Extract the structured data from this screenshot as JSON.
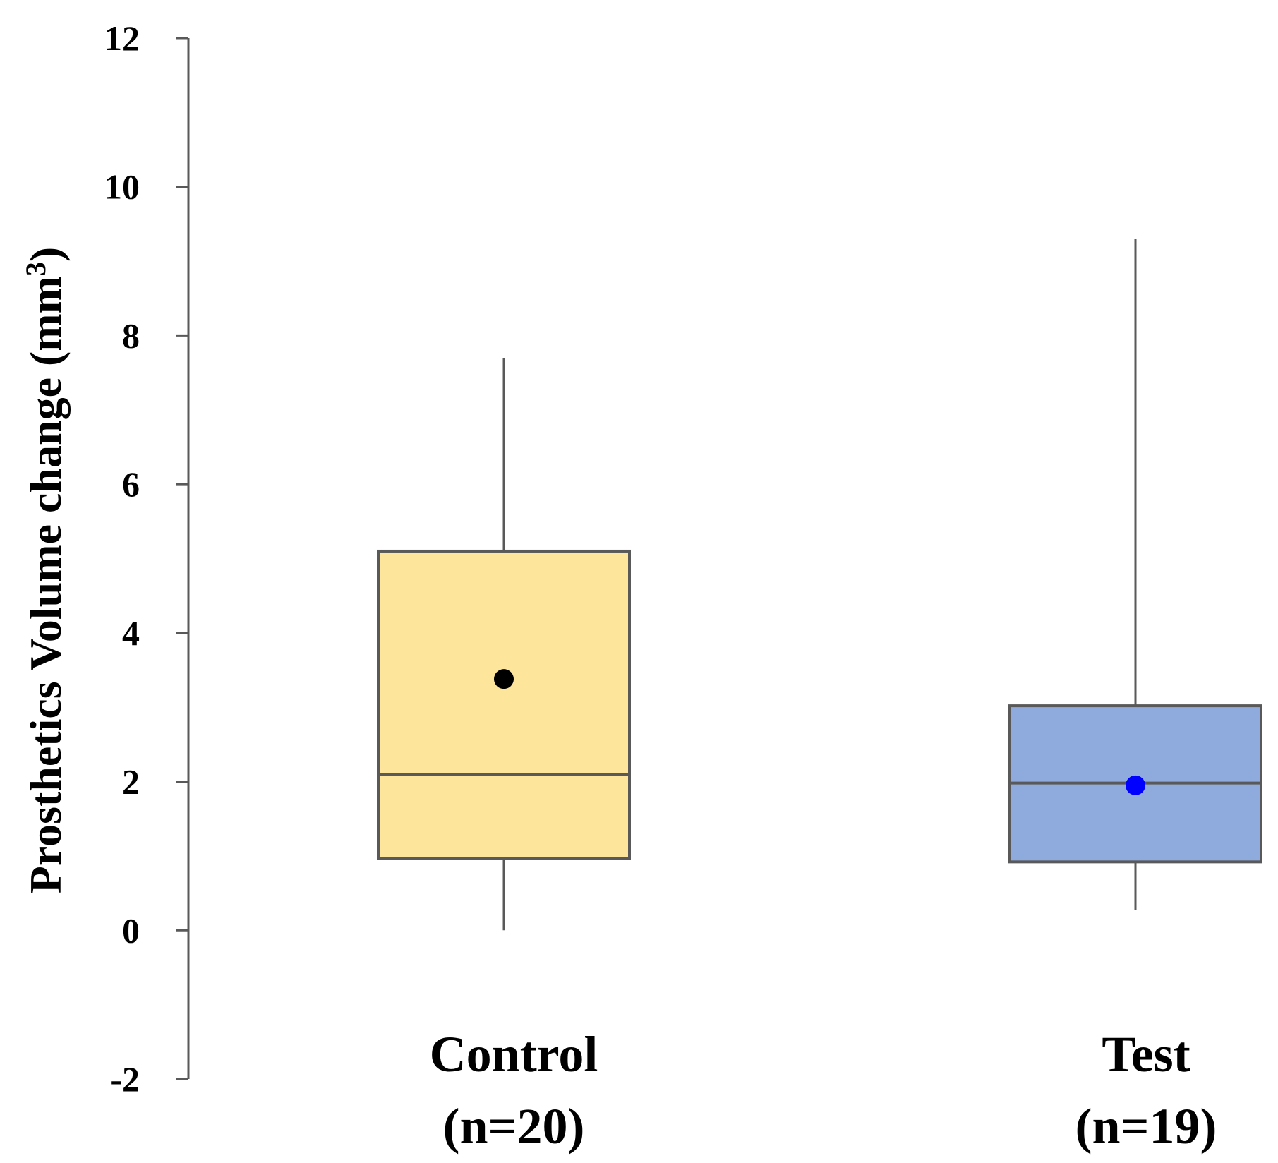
{
  "chart_data": {
    "type": "boxplot",
    "title": "",
    "xlabel": "",
    "ylabel": "Prosthetics Volume change (mm",
    "ylabel_superscript": "3",
    "ylabel_close": ")",
    "ylim": [
      -2,
      12
    ],
    "yticks": [
      -2,
      0,
      2,
      4,
      6,
      8,
      10,
      12
    ],
    "ytick_labels": [
      "-2",
      "0",
      "2",
      "4",
      "6",
      "8",
      "10",
      "12"
    ],
    "grid": false,
    "series": [
      {
        "name": "Control",
        "subtitle": "(n=20)",
        "min": 0,
        "q1": 0.97,
        "median": 2.1,
        "q3": 5.1,
        "max": 7.7,
        "mean": 3.38,
        "box_color": "#FDE59C",
        "mean_color": "#000000"
      },
      {
        "name": "Test",
        "subtitle": "(n=19)",
        "min": 0.27,
        "q1": 0.92,
        "median": 1.98,
        "q3": 3.02,
        "max": 9.3,
        "mean": 1.95,
        "box_color": "#8FABDE",
        "mean_color": "#0000FF"
      }
    ],
    "line_color": "#595959"
  }
}
